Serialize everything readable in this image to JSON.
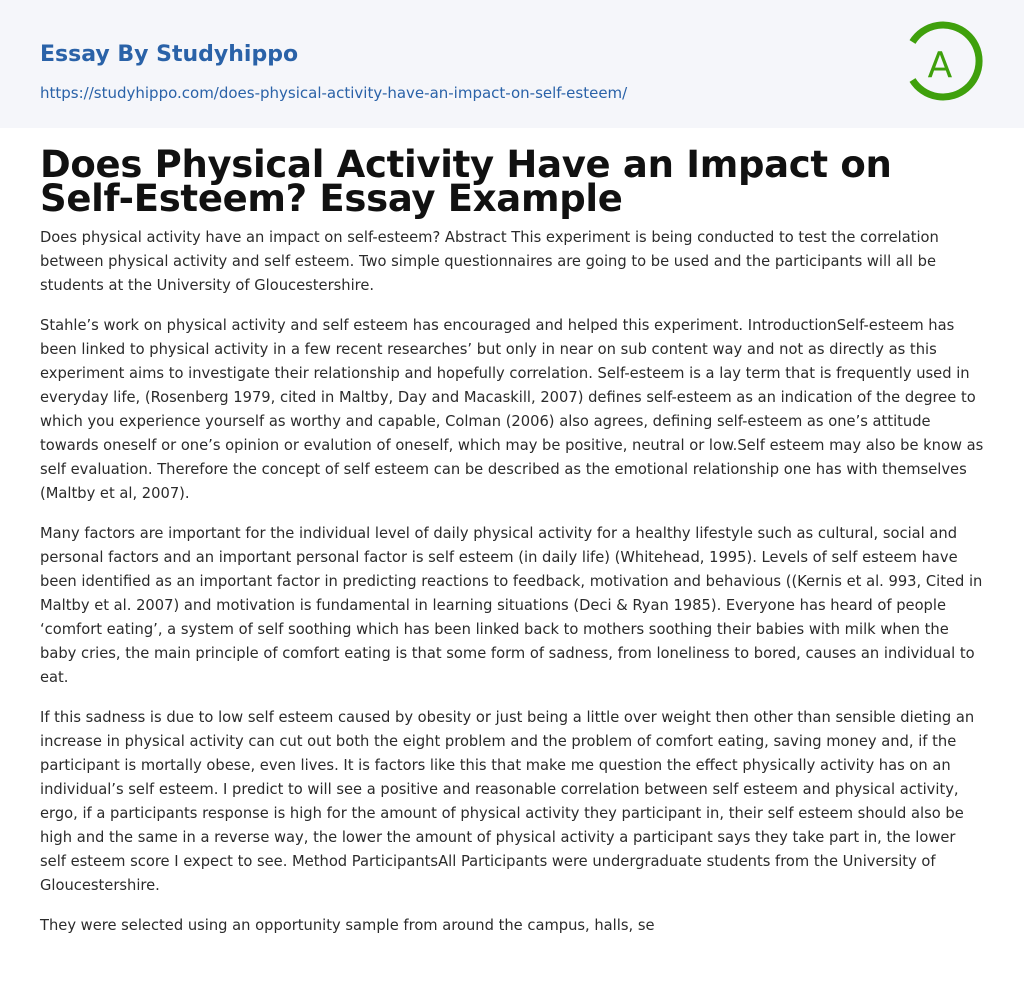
{
  "header": {
    "brand": "Essay By Studyhippo",
    "url": "https://studyhippo.com/does-physical-activity-have-an-impact-on-self-esteem/",
    "logo_letter": "A",
    "logo_color": "#3fa00c",
    "brand_color": "#2a62a8"
  },
  "article": {
    "title": "Does Physical Activity Have an Impact on Self-Esteem? Essay Example",
    "paragraphs": [
      "Does physical activity have an impact on self-esteem? Abstract This experiment is being conducted to test the correlation between physical activity and self esteem. Two simple questionnaires are going to be used and the participants will all be students at the University of Gloucestershire.",
      "Stahle’s work on physical activity and self esteem has encouraged and helped this experiment. IntroductionSelf-esteem has been linked to physical activity in a few recent researches’ but only in near on sub content way and not as directly as this experiment aims to investigate their relationship and hopefully correlation. Self-esteem is a lay term that is frequently used in everyday life, (Rosenberg 1979, cited in Maltby, Day and Macaskill, 2007) defines self-esteem as an indication of the degree to which you experience yourself as worthy and capable, Colman (2006) also agrees, defining self-esteem as one’s attitude towards oneself or one’s opinion or evalution of oneself, which may be positive, neutral or low.Self esteem may also be know as self evaluation. Therefore the concept of self esteem can be described as the emotional relationship one has with themselves (Maltby et al, 2007).",
      "Many factors are important for the individual level of daily physical activity for a healthy lifestyle such as cultural, social and personal factors and an important personal factor is self esteem (in daily life) (Whitehead, 1995). Levels of self esteem have been identified as an important factor in predicting reactions to feedback, motivation and behavious ((Kernis et al. 993, Cited in Maltby et al. 2007) and motivation is fundamental in learning situations (Deci & Ryan 1985). Everyone has heard of people ‘comfort eating’, a system of self soothing which has been linked back to mothers soothing their babies with milk when the baby cries, the main principle of comfort eating is that some form of sadness, from loneliness to bored, causes an individual to eat.",
      "If this sadness is due to low self esteem caused by obesity or just being a little over weight then other than sensible dieting an increase in physical activity can cut out both the eight problem and the problem of comfort eating, saving money and, if the participant is mortally obese, even lives. It is factors like this that make me question the effect physically activity has on an individual’s self esteem. I predict to will see a positive and reasonable correlation between self esteem and physical activity, ergo, if a participants response is high for the amount of physical activity they participant in, their self esteem should also be high and the same in a reverse way, the lower the amount of physical activity a participant says they take part in, the lower self esteem score I expect to see. Method ParticipantsAll Participants were undergraduate students from the University of Gloucestershire.",
      "They were selected using an opportunity sample from around the campus, halls, se"
    ]
  }
}
